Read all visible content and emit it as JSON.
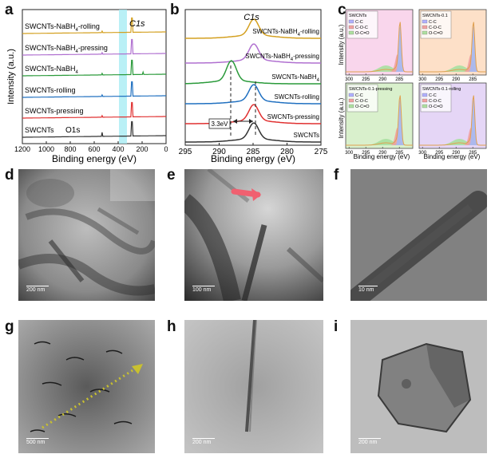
{
  "labels": {
    "a": "a",
    "b": "b",
    "c": "c",
    "d": "d",
    "e": "e",
    "f": "f",
    "g": "g",
    "h": "h",
    "i": "i"
  },
  "panel_a": {
    "ylabel": "Intensity (a.u.)",
    "xlabel": "Binding energy (eV)",
    "xticks": [
      "1200",
      "1000",
      "800",
      "600",
      "400",
      "200",
      "0"
    ],
    "c1s": "C1s",
    "o1s": "O1s",
    "traces": [
      {
        "name": "SWCNTs-NaBH4-rolling",
        "color": "#d4a020"
      },
      {
        "name": "SWCNTs-NaBH4-pressing",
        "color": "#b070d0"
      },
      {
        "name": "SWCNTs-NaBH4",
        "color": "#2a9a3a"
      },
      {
        "name": "SWCNTs-rolling",
        "color": "#2070c0"
      },
      {
        "name": "SWCNTs-pressing",
        "color": "#e03030"
      },
      {
        "name": "SWCNTs",
        "color": "#333333"
      }
    ]
  },
  "panel_b": {
    "ylabel": "Intensity (a.u.)",
    "xlabel": "Binding energy (eV)",
    "xticks": [
      "295",
      "290",
      "285",
      "280",
      "275"
    ],
    "c1s": "C1s",
    "shift": "3.3eV",
    "traces": [
      {
        "name": "SWCNTs-NaBH4-rolling",
        "color": "#d4a020",
        "peak": 284.9
      },
      {
        "name": "SWCNTs-NaBH4-pressing",
        "color": "#b070d0",
        "peak": 284.9
      },
      {
        "name": "SWCNTs-NaBH4",
        "color": "#2a9a3a",
        "peak": 288.2
      },
      {
        "name": "SWCNTs-rolling",
        "color": "#2070c0",
        "peak": 284.9
      },
      {
        "name": "SWCNTs-pressing",
        "color": "#e03030",
        "peak": 284.9
      },
      {
        "name": "SWCNTs",
        "color": "#333333",
        "peak": 284.9
      }
    ]
  },
  "panel_c": {
    "ylabel_top": "Intensity (a.u.)",
    "ylabel_bottom": "Intensity (a.u.)",
    "xlabel": "Binding energy (eV)",
    "xticks": [
      "300",
      "295",
      "290",
      "285"
    ],
    "legend": [
      "C-C",
      "C-O-C",
      "O-C=O"
    ],
    "subplots": [
      {
        "title": "SWCNTs",
        "bg": "#f9d6ec"
      },
      {
        "title": "SWCNTs-0.1",
        "bg": "#fde0c8"
      },
      {
        "title": "SWCNTs-0.1-pressing",
        "bg": "#d9f0cc"
      },
      {
        "title": "SWCNTs-0.1-rolling",
        "bg": "#e5d6f6"
      }
    ]
  },
  "scalebars": {
    "d": "200 nm",
    "e": "100 nm",
    "f": "10 nm",
    "g": "500 nm",
    "h": "200 nm",
    "i": "200 nm"
  }
}
